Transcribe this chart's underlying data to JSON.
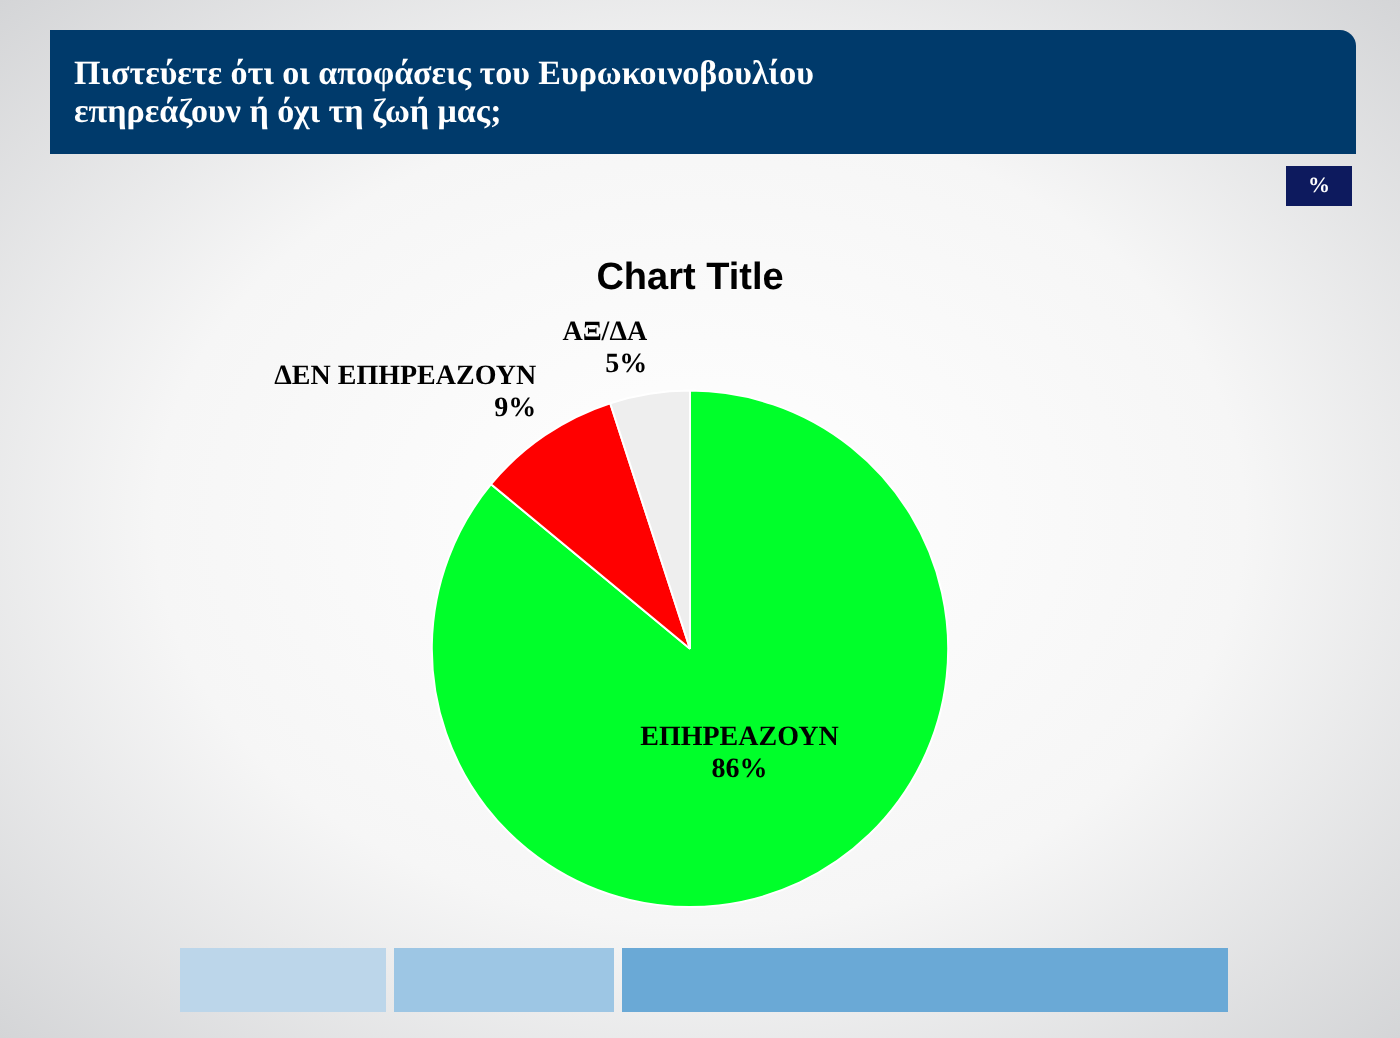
{
  "chart_data": {
    "type": "pie",
    "title": "Πιστεύετε ότι οι αποφάσεις του Ευρωκοινοβουλίου επηρεάζουν ή όχι τη ζωή μας;",
    "subtitle": "Chart Title",
    "annotations": [
      "%"
    ],
    "categories": [
      "ΕΠΗΡΕΑΖΟΥΝ",
      "ΔΕΝ ΕΠΗΡΕΑΖΟΥΝ",
      "ΑΞ/ΔΑ"
    ],
    "values": [
      86,
      9,
      5
    ],
    "colors": [
      "#00ff2a",
      "#ff0000",
      "#eeeeee"
    ],
    "value_labels": [
      "86%",
      "9%",
      "5%"
    ]
  }
}
